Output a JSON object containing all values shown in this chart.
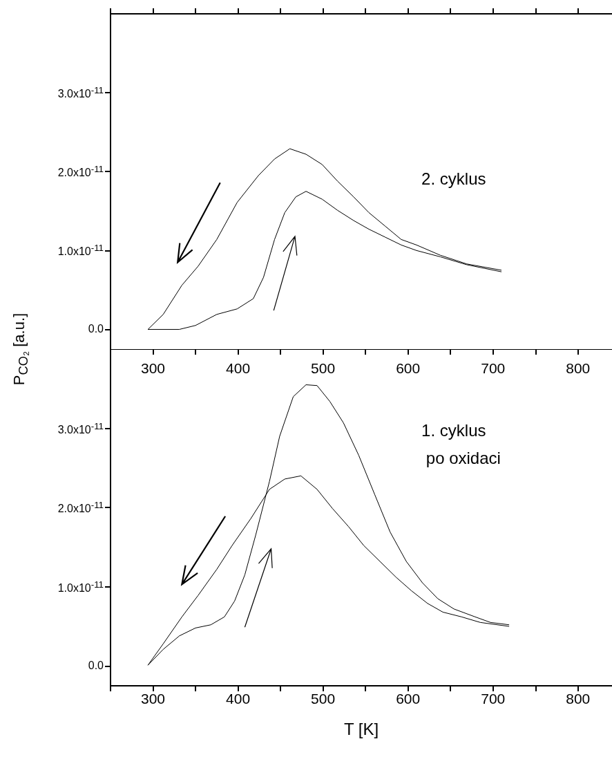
{
  "chart_data": [
    {
      "type": "line",
      "ylabel": "P$_{CO₂}$ [a.u.]",
      "annotations": [
        "2. cyklus"
      ],
      "xlim": [
        250,
        840
      ],
      "xticks": [
        {
          "value": 250,
          "label": null
        },
        {
          "value": 300,
          "label": null
        },
        {
          "value": 350,
          "label": null
        },
        {
          "value": 400,
          "label": null
        },
        {
          "value": 450,
          "label": null
        },
        {
          "value": 500,
          "label": null
        },
        {
          "value": 550,
          "label": null
        },
        {
          "value": 600,
          "label": null
        },
        {
          "value": 650,
          "label": null
        },
        {
          "value": 700,
          "label": null
        },
        {
          "value": 750,
          "label": null
        },
        {
          "value": 800,
          "label": null
        }
      ],
      "ylim": [
        -2.5e-12,
        4e-11
      ],
      "yticks": [
        {
          "value": 0,
          "label": "0.0"
        },
        {
          "value": 1e-11,
          "label": "1.0x10$^{-11}$"
        },
        {
          "value": 2e-11,
          "label": "2.0x10$^{-11}$"
        },
        {
          "value": 3e-11,
          "label": "3.0x10$^{-11}$"
        }
      ],
      "tick_labels": "y",
      "grid": false,
      "marker": "none",
      "line_style": "solid",
      "series": [
        {
          "color": "#000000",
          "x": [
            294,
            312,
            334,
            353,
            375,
            399,
            424,
            443,
            461,
            480,
            499,
            517,
            536,
            554,
            573,
            592,
            610,
            638,
            669,
            710
          ],
          "values": [
            0,
            1.9e-12,
            5.6e-12,
            8e-12,
            1.14e-11,
            1.61e-11,
            1.95e-11,
            2.16e-11,
            2.29e-11,
            2.22e-11,
            2.09e-11,
            1.88e-11,
            1.68e-11,
            1.48e-11,
            1.31e-11,
            1.14e-11,
            1.07e-11,
            9.4e-12,
            8.3e-12,
            7.5e-12
          ]
        },
        {
          "color": "#000000",
          "x": [
            294,
            331,
            350,
            375,
            399,
            418,
            430,
            443,
            455,
            468,
            480,
            499,
            517,
            536,
            554,
            573,
            592,
            610,
            638,
            669,
            710
          ],
          "values": [
            0,
            0,
            5e-13,
            1.9e-12,
            2.6e-12,
            3.9e-12,
            6.6e-12,
            1.14e-11,
            1.48e-11,
            1.68e-11,
            1.75e-11,
            1.65e-11,
            1.51e-11,
            1.38e-11,
            1.27e-11,
            1.17e-11,
            1.07e-11,
            1e-11,
            9.2e-12,
            8.2e-12,
            7.3e-12
          ]
        }
      ]
    },
    {
      "type": "line",
      "xlabel": "T [K]",
      "annotations": [
        "1. cyklus\n po oxidaci"
      ],
      "xlim": [
        250,
        840
      ],
      "xticks": [
        {
          "value": 250,
          "label": null
        },
        300,
        {
          "value": 350,
          "label": null
        },
        400,
        {
          "value": 450,
          "label": null
        },
        500,
        {
          "value": 550,
          "label": null
        },
        600,
        {
          "value": 650,
          "label": null
        },
        700,
        {
          "value": 750,
          "label": null
        },
        800
      ],
      "x2lim": [
        250,
        840
      ],
      "x2ticks": [
        {
          "value": 250,
          "label": null
        },
        300,
        {
          "value": 350,
          "label": null
        },
        400,
        {
          "value": 450,
          "label": null
        },
        500,
        {
          "value": 550,
          "label": null
        },
        600,
        {
          "value": 650,
          "label": null
        },
        700,
        {
          "value": 750,
          "label": null
        },
        800
      ],
      "ylim": [
        -2.5e-12,
        4e-11
      ],
      "yticks": [
        {
          "value": 0,
          "label": "0.0"
        },
        {
          "value": 1e-11,
          "label": "1.0x10$^{-11}$"
        },
        {
          "value": 2e-11,
          "label": "2.0x10$^{-11}$"
        },
        {
          "value": 3e-11,
          "label": "3.0x10$^{-11}$"
        }
      ],
      "grid": false,
      "marker": "none",
      "line_style": "solid",
      "series": [
        {
          "color": "#000000",
          "x": [
            294,
            312,
            331,
            350,
            368,
            384,
            396,
            408,
            421,
            437,
            449,
            465,
            480,
            493,
            508,
            524,
            542,
            561,
            579,
            598,
            617,
            635,
            654,
            679,
            697,
            719
          ],
          "values": [
            1e-13,
            2.1e-12,
            3.8e-12,
            4.8e-12,
            5.2e-12,
            6.2e-12,
            8.2e-12,
            1.15e-11,
            1.66e-11,
            2.33e-11,
            2.9e-11,
            3.4e-11,
            3.55e-11,
            3.54e-11,
            3.34e-11,
            3.07e-11,
            2.66e-11,
            2.16e-11,
            1.69e-11,
            1.32e-11,
            1.05e-11,
            8.5e-12,
            7.2e-12,
            6.2e-12,
            5.5e-12,
            5.2e-12
          ]
        },
        {
          "color": "#000000",
          "x": [
            294,
            312,
            334,
            353,
            375,
            393,
            415,
            437,
            455,
            474,
            493,
            511,
            530,
            548,
            567,
            586,
            604,
            623,
            641,
            663,
            685,
            719
          ],
          "values": [
            1e-13,
            2.8e-12,
            6.2e-12,
            8.9e-12,
            1.22e-11,
            1.52e-11,
            1.86e-11,
            2.23e-11,
            2.36e-11,
            2.4e-11,
            2.23e-11,
            1.99e-11,
            1.76e-11,
            1.52e-11,
            1.32e-11,
            1.12e-11,
            9.5e-12,
            7.9e-12,
            6.8e-12,
            6.2e-12,
            5.5e-12,
            5e-12
          ]
        }
      ]
    }
  ]
}
